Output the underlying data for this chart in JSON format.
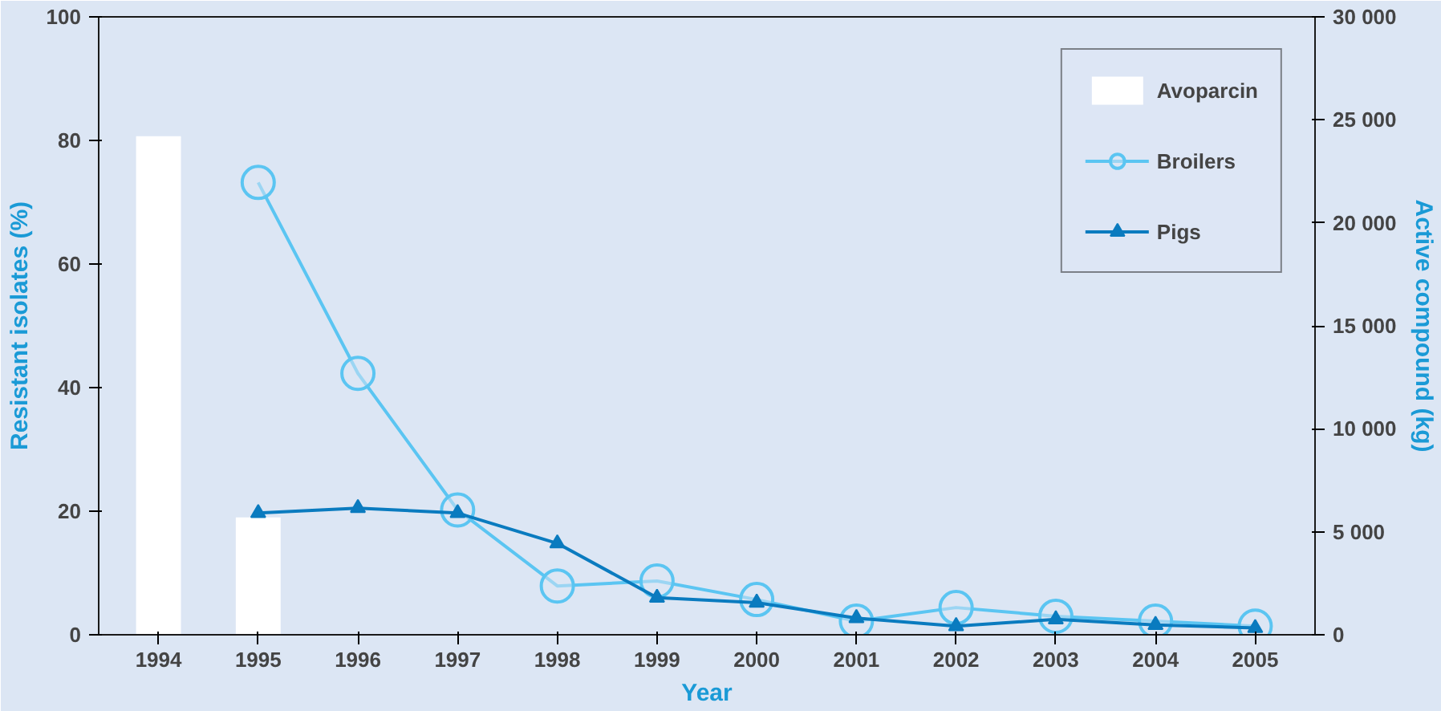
{
  "chart_data": {
    "type": "line",
    "xlabel": "Year",
    "ylabel": "Resistant isolates (%)",
    "y2label": "Active compound (kg)",
    "categories": [
      "1994",
      "1995",
      "1996",
      "1997",
      "1998",
      "1999",
      "2000",
      "2001",
      "2002",
      "2003",
      "2004",
      "2005"
    ],
    "series": [
      {
        "name": "Avoparcin",
        "type": "bar",
        "axis": "y2",
        "color": "#ffffff",
        "values": [
          24200,
          5700,
          null,
          null,
          null,
          null,
          null,
          null,
          null,
          null,
          null,
          null
        ]
      },
      {
        "name": "Broilers",
        "marker": "circle",
        "color": "#5bc5f2",
        "values": [
          null,
          73.2,
          42.3,
          20.2,
          7.9,
          8.7,
          5.7,
          2.2,
          4.4,
          3.0,
          2.2,
          1.4
        ]
      },
      {
        "name": "Pigs",
        "marker": "triangle",
        "color": "#0a7bbf",
        "values": [
          null,
          19.7,
          20.5,
          19.7,
          14.8,
          6.0,
          5.2,
          2.7,
          1.4,
          2.5,
          1.6,
          1.1
        ]
      }
    ],
    "ylim": [
      0,
      100
    ],
    "yticks": [
      0,
      20,
      40,
      60,
      80,
      100
    ],
    "y2lim": [
      0,
      30000
    ],
    "y2ticks": [
      {
        "value": 0,
        "label": "0"
      },
      {
        "value": 5000,
        "label": "5 000"
      },
      {
        "value": 10000,
        "label": "10 000"
      },
      {
        "value": 15000,
        "label": "15 000"
      },
      {
        "value": 20000,
        "label": "20 000"
      },
      {
        "value": 25000,
        "label": "25 000"
      },
      {
        "value": 30000,
        "label": "30 000"
      }
    ],
    "grid": false,
    "legend": "top right"
  }
}
